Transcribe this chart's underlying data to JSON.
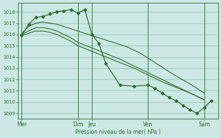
{
  "bg_color": "#cce8e4",
  "grid_color": "#88bbaa",
  "line_color": "#2a6b2a",
  "ylim": [
    1008.5,
    1018.8
  ],
  "yticks": [
    1009,
    1010,
    1011,
    1012,
    1013,
    1014,
    1015,
    1016,
    1017,
    1018
  ],
  "xlabel": "Pression niveau de la mer( hPa )",
  "xtick_pos": [
    0,
    8,
    10,
    18,
    26
  ],
  "xtick_lbl": [
    "Mer",
    "Dim",
    "Jeu",
    "Ven",
    "Sam"
  ],
  "xlim": [
    -0.5,
    28.0
  ],
  "vlines": [
    0,
    8,
    10,
    18,
    26
  ],
  "s1_x": [
    0,
    1,
    2,
    3,
    4,
    5,
    6,
    7,
    8,
    10,
    12,
    14,
    16,
    18,
    20,
    22,
    24,
    26
  ],
  "s1_y": [
    1015.9,
    1016.1,
    1016.3,
    1016.3,
    1016.2,
    1016.0,
    1015.7,
    1015.4,
    1015.0,
    1014.5,
    1014.0,
    1013.5,
    1013.0,
    1012.4,
    1011.8,
    1011.3,
    1010.8,
    1010.2
  ],
  "s2_x": [
    0,
    1,
    2,
    3,
    4,
    5,
    6,
    7,
    8,
    10,
    12,
    14,
    16,
    18,
    20,
    22,
    24,
    26
  ],
  "s2_y": [
    1016.0,
    1016.3,
    1016.6,
    1016.6,
    1016.5,
    1016.3,
    1016.0,
    1015.7,
    1015.3,
    1014.8,
    1014.3,
    1013.8,
    1013.2,
    1012.6,
    1012.0,
    1011.4,
    1010.8,
    1010.2
  ],
  "s3_x": [
    0,
    1,
    2,
    3,
    4,
    5,
    6,
    7,
    8,
    9,
    10,
    11,
    12,
    13,
    14,
    15,
    16,
    17,
    18,
    20,
    22,
    24,
    26
  ],
  "s3_y": [
    1016.1,
    1016.7,
    1017.0,
    1017.1,
    1017.0,
    1016.9,
    1016.7,
    1016.5,
    1016.3,
    1016.1,
    1015.9,
    1015.7,
    1015.5,
    1015.3,
    1015.1,
    1014.9,
    1014.6,
    1014.3,
    1013.9,
    1013.1,
    1012.3,
    1011.6,
    1010.8
  ],
  "s4_x": [
    0,
    1,
    2,
    3,
    4,
    5,
    6,
    7,
    8,
    9,
    10,
    11,
    12,
    14,
    16,
    18,
    19,
    20,
    21,
    22,
    23,
    24,
    25,
    26,
    27
  ],
  "s4_y": [
    1015.9,
    1016.9,
    1017.5,
    1017.6,
    1017.8,
    1018.0,
    1018.1,
    1018.2,
    1017.9,
    1018.2,
    1016.0,
    1015.2,
    1013.4,
    1011.5,
    1011.4,
    1011.5,
    1011.2,
    1010.8,
    1010.4,
    1010.1,
    1009.7,
    1009.3,
    1009.0,
    1009.5,
    1010.1
  ]
}
